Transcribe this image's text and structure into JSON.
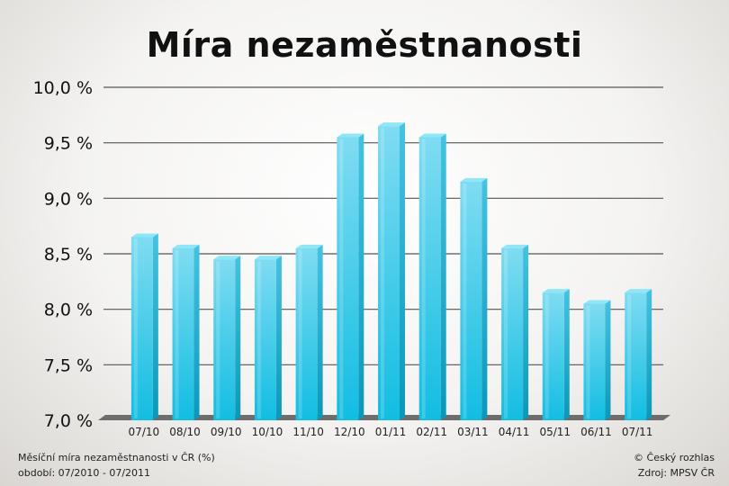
{
  "chart_data": {
    "type": "bar",
    "title": "Míra nezaměstnanosti",
    "categories": [
      "07/10",
      "08/10",
      "09/10",
      "10/10",
      "11/10",
      "12/10",
      "01/11",
      "02/11",
      "03/11",
      "04/11",
      "05/11",
      "06/11",
      "07/11"
    ],
    "values": [
      8.65,
      8.55,
      8.45,
      8.45,
      8.55,
      9.55,
      9.65,
      9.55,
      9.15,
      8.55,
      8.15,
      8.05,
      8.15
    ],
    "ylim": [
      7.0,
      10.0
    ],
    "yticks": [
      "7,0 %",
      "7,5 %",
      "8,0 %",
      "8,5 %",
      "9,0 %",
      "9,5 %",
      "10,0 %"
    ],
    "grid": true,
    "colors": {
      "bar_front": "#19c4e6",
      "bar_side": "#0c9dbd",
      "bar_top": "#8fe6f7"
    }
  },
  "footer": {
    "description": "Měsíční míra nezaměstnanosti v ČR (%)",
    "period": "období: 07/2010 - 07/2011",
    "copyright": "© Český rozhlas",
    "source": "Zdroj: MPSV ČR"
  }
}
